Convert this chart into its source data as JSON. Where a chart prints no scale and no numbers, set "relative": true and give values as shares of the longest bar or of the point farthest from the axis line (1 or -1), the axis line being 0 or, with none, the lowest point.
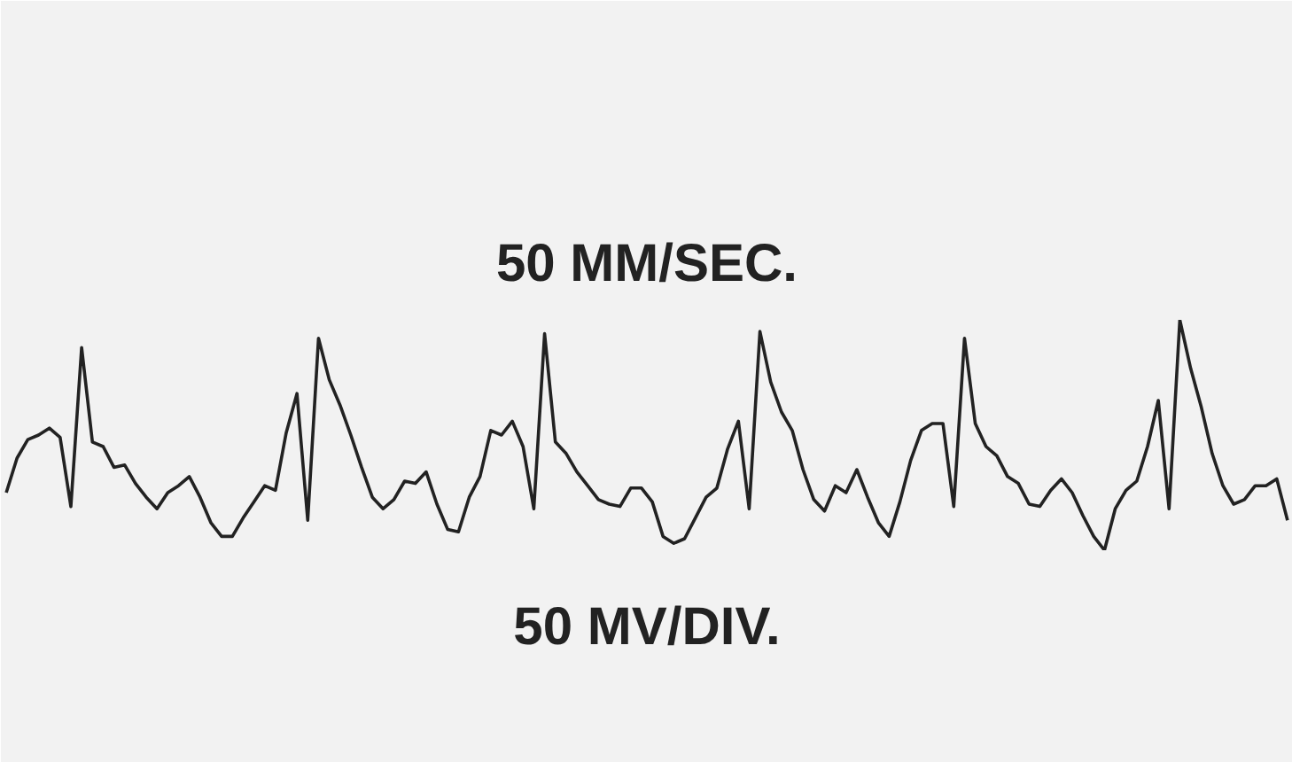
{
  "chart_data": {
    "type": "line",
    "relative": true,
    "tick_labels": false,
    "marker": "none",
    "line_style": "solid",
    "annotations": [
      "50 MM/SEC.",
      "50 MV/DIV."
    ],
    "categories": [
      null,
      null,
      null,
      null,
      null,
      null,
      null,
      null,
      null,
      null,
      null,
      null,
      null,
      null,
      null,
      null,
      null,
      null,
      null,
      null,
      null,
      null,
      null,
      null,
      null,
      null,
      null,
      null,
      null,
      null,
      null,
      null,
      null,
      null,
      null,
      null,
      null,
      null,
      null,
      null,
      null,
      null,
      null,
      null,
      null,
      null,
      null,
      null,
      null,
      null,
      null,
      null,
      null,
      null,
      null,
      null,
      null,
      null,
      null,
      null,
      null,
      null,
      null,
      null,
      null,
      null,
      null,
      null,
      null,
      null,
      null,
      null,
      null,
      null,
      null,
      null,
      null,
      null,
      null,
      null,
      null,
      null,
      null,
      null,
      null,
      null,
      null,
      null,
      null,
      null,
      null,
      null,
      null,
      null,
      null,
      null,
      null,
      null,
      null,
      null,
      null,
      null,
      null,
      null,
      null,
      null,
      null,
      null,
      null,
      null,
      null,
      null,
      null,
      null,
      null,
      null,
      null,
      null,
      null,
      null
    ],
    "series": [
      {
        "color": "#222222",
        "values": [
          0.25,
          0.4,
          0.48,
          0.5,
          0.53,
          0.49,
          0.19,
          0.88,
          0.47,
          0.45,
          0.36,
          0.37,
          0.29,
          0.23,
          0.18,
          0.25,
          0.28,
          0.32,
          0.23,
          0.12,
          0.06,
          0.06,
          0.14,
          0.21,
          0.28,
          0.26,
          0.51,
          0.68,
          0.13,
          0.92,
          0.74,
          0.63,
          0.5,
          0.36,
          0.23,
          0.18,
          0.22,
          0.3,
          0.29,
          0.34,
          0.2,
          0.09,
          0.08,
          0.23,
          0.32,
          0.52,
          0.5,
          0.56,
          0.45,
          0.18,
          0.94,
          0.47,
          0.42,
          0.34,
          0.28,
          0.22,
          0.2,
          0.19,
          0.27,
          0.27,
          0.21,
          0.06,
          0.03,
          0.05,
          0.14,
          0.23,
          0.27,
          0.44,
          0.56,
          0.18,
          0.95,
          0.73,
          0.6,
          0.52,
          0.35,
          0.22,
          0.17,
          0.28,
          0.25,
          0.35,
          0.23,
          0.12,
          0.06,
          0.21,
          0.39,
          0.52,
          0.55,
          0.55,
          0.19,
          0.92,
          0.55,
          0.45,
          0.41,
          0.32,
          0.29,
          0.2,
          0.19,
          0.26,
          0.31,
          0.25,
          0.15,
          0.06,
          0.0,
          0.18,
          0.26,
          0.3,
          0.45,
          0.65,
          0.18,
          1.0,
          0.79,
          0.62,
          0.42,
          0.28,
          0.2,
          0.22,
          0.28,
          0.28,
          0.31,
          0.13
        ]
      }
    ]
  }
}
